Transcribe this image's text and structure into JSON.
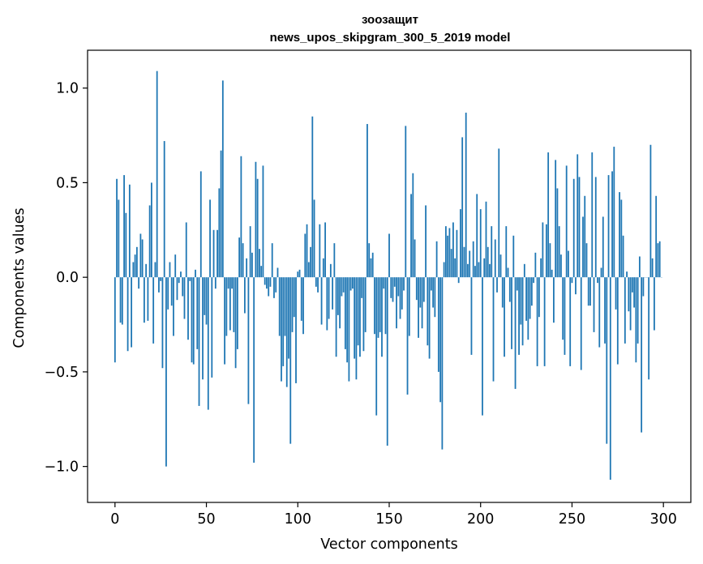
{
  "chart_data": {
    "type": "bar",
    "title": "зоозащит",
    "subtitle": "news_upos_skipgram_300_5_2019 model",
    "xlabel": "Vector components",
    "ylabel": "Components values",
    "xlim": [
      -15,
      315
    ],
    "ylim": [
      -1.19,
      1.2
    ],
    "x_ticks": [
      0,
      50,
      100,
      150,
      200,
      250,
      300
    ],
    "x_tick_labels": [
      "0",
      "50",
      "100",
      "150",
      "200",
      "250",
      "300"
    ],
    "y_ticks": [
      -1.0,
      -0.5,
      0.0,
      0.5,
      1.0
    ],
    "y_tick_labels": [
      "−1.0",
      "−0.5",
      "0.0",
      "0.5",
      "1.0"
    ],
    "grid": false,
    "bar_color": "#1f77b4",
    "x": "0..299 (component index)",
    "values": [
      -0.45,
      0.52,
      0.41,
      -0.24,
      -0.25,
      0.54,
      0.34,
      -0.39,
      0.49,
      -0.37,
      0.08,
      0.12,
      0.16,
      -0.06,
      0.23,
      0.2,
      -0.24,
      0.07,
      -0.23,
      0.38,
      0.5,
      -0.35,
      0.08,
      1.09,
      -0.08,
      -0.02,
      -0.48,
      0.72,
      -1.0,
      -0.17,
      0.08,
      -0.15,
      -0.31,
      0.12,
      -0.12,
      -0.03,
      0.03,
      -0.1,
      -0.22,
      0.29,
      -0.33,
      -0.02,
      -0.45,
      -0.46,
      0.04,
      -0.38,
      -0.68,
      0.56,
      -0.54,
      -0.2,
      -0.25,
      -0.7,
      0.41,
      -0.53,
      0.25,
      -0.06,
      0.25,
      0.47,
      0.67,
      1.04,
      -0.46,
      -0.31,
      -0.06,
      -0.28,
      -0.06,
      -0.29,
      -0.48,
      -0.38,
      0.21,
      0.64,
      0.18,
      -0.19,
      0.1,
      -0.67,
      0.27,
      0.13,
      -0.98,
      0.61,
      0.52,
      0.15,
      0.06,
      0.59,
      -0.04,
      -0.06,
      -0.1,
      -0.05,
      0.18,
      -0.11,
      -0.08,
      0.05,
      -0.31,
      -0.55,
      -0.47,
      -0.31,
      -0.58,
      -0.43,
      -0.88,
      -0.29,
      -0.21,
      -0.56,
      0.03,
      0.04,
      -0.23,
      -0.3,
      0.23,
      0.28,
      0.08,
      0.16,
      0.85,
      0.41,
      -0.05,
      -0.08,
      0.28,
      -0.25,
      0.1,
      0.29,
      -0.28,
      -0.22,
      0.07,
      -0.17,
      0.18,
      -0.42,
      -0.2,
      -0.27,
      -0.1,
      -0.08,
      -0.38,
      -0.45,
      -0.55,
      -0.07,
      -0.06,
      -0.43,
      -0.54,
      -0.36,
      -0.42,
      -0.11,
      -0.39,
      -0.29,
      0.81,
      0.18,
      0.1,
      0.13,
      -0.3,
      -0.73,
      -0.32,
      -0.29,
      -0.42,
      -0.06,
      -0.3,
      -0.89,
      0.23,
      -0.11,
      -0.13,
      -0.05,
      -0.27,
      -0.1,
      -0.22,
      -0.17,
      -0.07,
      0.8,
      -0.62,
      -0.31,
      0.44,
      0.55,
      0.2,
      -0.12,
      -0.32,
      -0.16,
      -0.27,
      -0.13,
      0.38,
      -0.36,
      -0.43,
      -0.07,
      -0.16,
      -0.21,
      0.19,
      -0.5,
      -0.66,
      -0.91,
      0.08,
      0.27,
      0.22,
      0.26,
      0.15,
      0.29,
      0.1,
      0.25,
      -0.03,
      0.36,
      0.74,
      0.16,
      0.87,
      0.07,
      0.14,
      -0.41,
      0.19,
      0.06,
      0.44,
      0.08,
      0.36,
      -0.73,
      0.1,
      0.4,
      0.16,
      0.07,
      0.27,
      -0.55,
      0.2,
      -0.08,
      0.68,
      0.12,
      -0.16,
      -0.42,
      0.27,
      0.05,
      -0.13,
      -0.38,
      0.22,
      -0.59,
      -0.07,
      -0.41,
      -0.25,
      -0.36,
      0.07,
      -0.23,
      -0.33,
      -0.22,
      -0.15,
      -0.03,
      0.13,
      -0.47,
      -0.21,
      0.1,
      0.29,
      -0.47,
      0.28,
      0.66,
      0.18,
      0.04,
      -0.24,
      0.62,
      0.47,
      0.27,
      0.12,
      -0.33,
      -0.41,
      0.59,
      0.14,
      -0.47,
      -0.03,
      0.52,
      -0.09,
      0.65,
      0.53,
      -0.49,
      0.32,
      0.43,
      0.18,
      -0.15,
      -0.15,
      0.66,
      -0.29,
      0.53,
      -0.03,
      -0.37,
      0.05,
      0.32,
      -0.35,
      -0.88,
      0.54,
      -1.07,
      0.56,
      0.69,
      -0.17,
      -0.46,
      0.45,
      0.41,
      0.22,
      -0.35,
      0.03,
      -0.18,
      -0.28,
      -0.08,
      -0.16,
      -0.45,
      -0.35,
      0.11,
      -0.82,
      -0.1,
      0.0,
      0.0,
      -0.54,
      0.7,
      0.1,
      -0.28,
      0.43,
      0.18,
      0.19,
      0.0
    ]
  }
}
